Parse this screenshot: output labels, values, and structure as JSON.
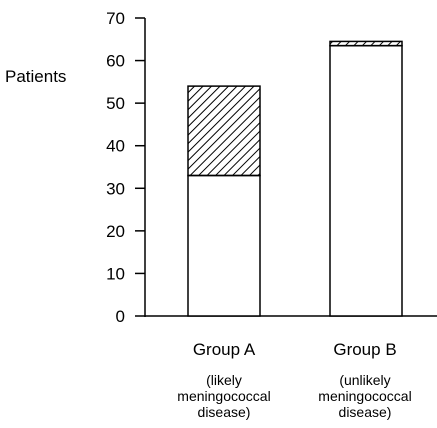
{
  "chart_data": {
    "type": "bar",
    "stacked": true,
    "ylabel": "Patients",
    "xlabel": "",
    "title": "",
    "ylim": [
      0,
      70
    ],
    "yticks": [
      0,
      10,
      20,
      30,
      40,
      50,
      60,
      70
    ],
    "grid": false,
    "categories": [
      "Group A",
      "Group B"
    ],
    "category_notes": [
      [
        "(likely",
        "meningococcal",
        "disease)"
      ],
      [
        "(unlikely",
        "meningococcal",
        "disease)"
      ]
    ],
    "series": [
      {
        "fill": "white",
        "values": [
          33,
          63.5
        ]
      },
      {
        "fill": "hatched",
        "values": [
          21,
          1
        ]
      }
    ],
    "colors": {
      "axis": "#000000",
      "bar_stroke": "#000000",
      "bar_fill": "#ffffff",
      "hatch": "#000000"
    }
  }
}
